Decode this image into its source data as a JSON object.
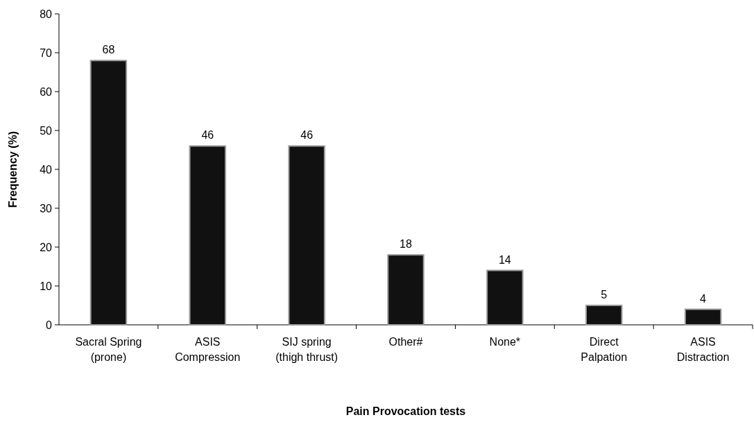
{
  "chart_data": {
    "type": "bar",
    "xlabel": "Pain Provocation tests",
    "ylabel": "Frequency (%)",
    "categories": [
      "Sacral Spring\n(prone)",
      "ASIS\nCompression",
      "SIJ spring\n(thigh thrust)",
      "Other#",
      "None*",
      "Direct\nPalpation",
      "ASIS\nDistraction"
    ],
    "values": [
      68,
      46,
      46,
      18,
      14,
      5,
      4
    ],
    "color": "#111111",
    "ylim": [
      0,
      80
    ],
    "yticks": [
      0,
      10,
      20,
      30,
      40,
      50,
      60,
      70,
      80
    ],
    "grid": false,
    "data_labels": true
  }
}
